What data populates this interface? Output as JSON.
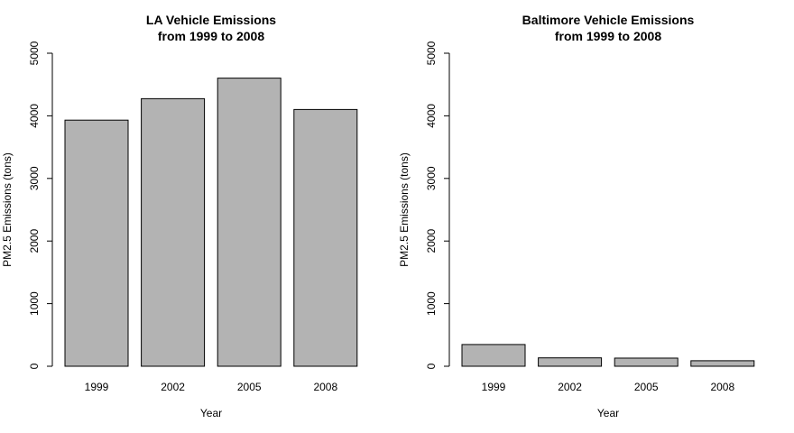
{
  "chart_data": [
    {
      "type": "bar",
      "title_lines": [
        "LA Vehicle Emissions",
        "from 1999 to 2008"
      ],
      "categories": [
        "1999",
        "2002",
        "2005",
        "2008"
      ],
      "values": [
        3931,
        4274,
        4602,
        4101
      ],
      "xlabel": "Year",
      "ylabel": "PM2.5 Emissions (tons)",
      "ylim": [
        0,
        5000
      ],
      "yticks": [
        0,
        1000,
        2000,
        3000,
        4000,
        5000
      ],
      "bar_color": "#b3b3b3"
    },
    {
      "type": "bar",
      "title_lines": [
        "Baltimore Vehicle Emissions",
        "from 1999 to 2008"
      ],
      "categories": [
        "1999",
        "2002",
        "2005",
        "2008"
      ],
      "values": [
        347,
        134,
        130,
        88
      ],
      "xlabel": "Year",
      "ylabel": "PM2.5 Emissions (tons)",
      "ylim": [
        0,
        5000
      ],
      "yticks": [
        0,
        1000,
        2000,
        3000,
        4000,
        5000
      ],
      "bar_color": "#b3b3b3"
    }
  ]
}
